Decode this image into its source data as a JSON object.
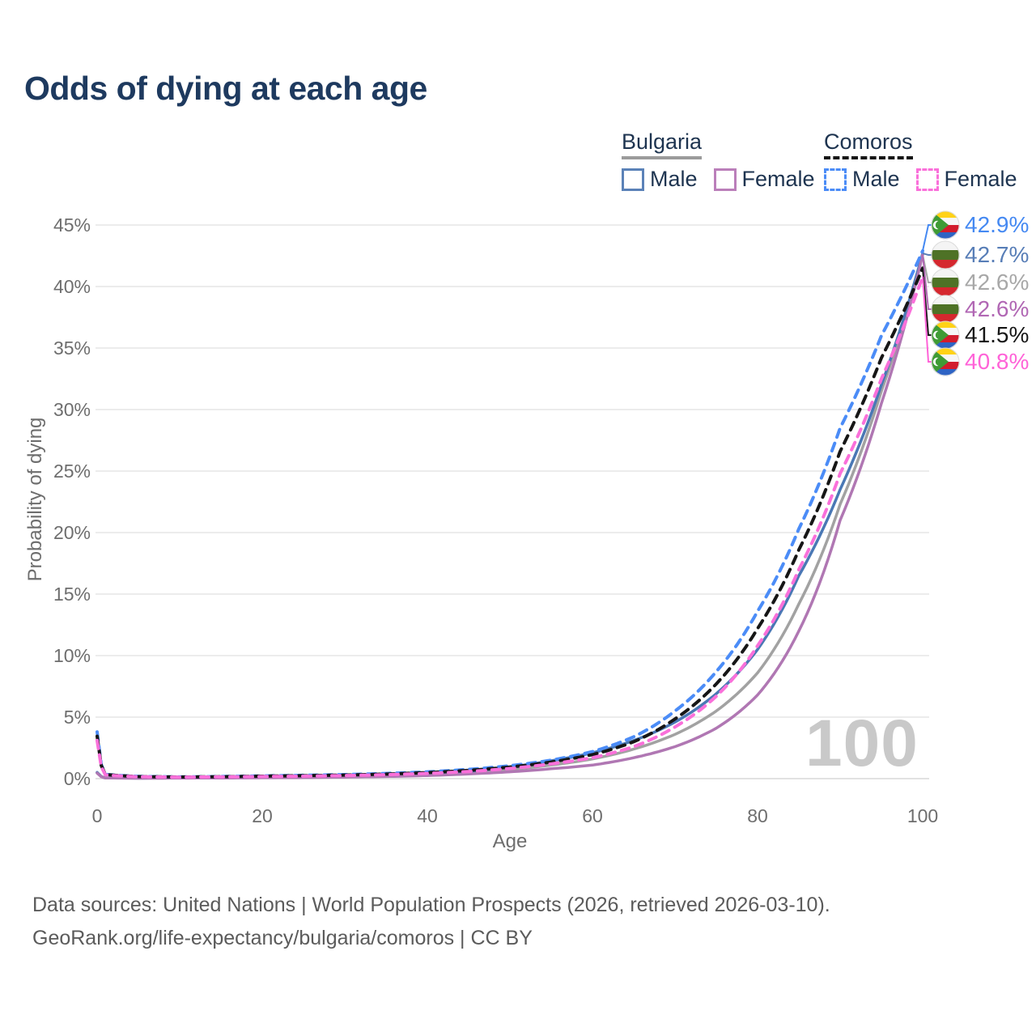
{
  "title": "Odds of dying at each age",
  "hover_age_label": "100",
  "legend": {
    "groups": [
      {
        "label": "Bulgaria",
        "line_style": "solid",
        "underline_color": "#9b9b9b",
        "items": [
          {
            "label": "Male",
            "color": "#5b82b8",
            "dash": false
          },
          {
            "label": "Female",
            "color": "#bb7fba",
            "dash": false
          }
        ]
      },
      {
        "label": "Comoros",
        "line_style": "dashed",
        "underline_color": "#161616",
        "items": [
          {
            "label": "Male",
            "color": "#4b8cf7",
            "dash": true
          },
          {
            "label": "Female",
            "color": "#fa70da",
            "dash": true
          }
        ]
      }
    ]
  },
  "end_labels": [
    {
      "value": "42.9%",
      "color": "#4589f2",
      "flag": "comoros",
      "series": "comoros_male"
    },
    {
      "value": "42.7%",
      "color": "#587eb7",
      "flag": "bulgaria",
      "series": "bulgaria_male"
    },
    {
      "value": "42.6%",
      "color": "#a8a8a8",
      "flag": "bulgaria",
      "series": "bulgaria_both"
    },
    {
      "value": "42.6%",
      "color": "#b167b4",
      "flag": "bulgaria",
      "series": "bulgaria_female"
    },
    {
      "value": "41.5%",
      "color": "#161616",
      "flag": "comoros",
      "series": "comoros_both"
    },
    {
      "value": "40.8%",
      "color": "#ff63d8",
      "flag": "comoros",
      "series": "comoros_female"
    }
  ],
  "source": {
    "line1": "Data sources: United Nations | World Population Prospects (2026, retrieved 2026-03-10).",
    "line2": "GeoRank.org/life-expectancy/bulgaria/comoros | CC BY"
  },
  "chart_data": {
    "type": "line",
    "title": "Odds of dying at each age",
    "xlabel": "Age",
    "ylabel": "Probability of dying",
    "xlim": [
      0,
      100
    ],
    "ylim": [
      0,
      45
    ],
    "grid": "horizontal-only",
    "legend_position": "top-right",
    "y_ticks": [
      0,
      5,
      10,
      15,
      20,
      25,
      30,
      35,
      40,
      45
    ],
    "y_tick_suffix": "%",
    "x_ticks": [
      0,
      20,
      40,
      60,
      80,
      100
    ],
    "x": [
      0,
      1,
      5,
      10,
      15,
      20,
      25,
      30,
      35,
      40,
      45,
      50,
      55,
      60,
      65,
      70,
      75,
      80,
      85,
      90,
      95,
      100
    ],
    "series": [
      {
        "id": "bulgaria_both",
        "name": "Bulgaria Both sexes",
        "country": "Bulgaria",
        "sex": "both",
        "color": "#a2a2a2",
        "dash": false,
        "values": [
          0.48,
          0.055,
          0.035,
          0.045,
          0.065,
          0.1,
          0.12,
          0.16,
          0.22,
          0.33,
          0.5,
          0.75,
          1.1,
          1.6,
          2.4,
          3.6,
          5.5,
          8.6,
          14.2,
          22.3,
          31.5,
          42.6
        ]
      },
      {
        "id": "bulgaria_male",
        "name": "Bulgaria Male",
        "country": "Bulgaria",
        "sex": "male",
        "color": "#4a78b5",
        "dash": false,
        "values": [
          0.5,
          0.06,
          0.04,
          0.05,
          0.08,
          0.12,
          0.15,
          0.2,
          0.28,
          0.4,
          0.6,
          0.95,
          1.45,
          2.1,
          3.1,
          4.6,
          6.9,
          10.5,
          16.5,
          23.5,
          32.0,
          42.7
        ]
      },
      {
        "id": "bulgaria_female",
        "name": "Bulgaria Female",
        "country": "Bulgaria",
        "sex": "female",
        "color": "#b077b3",
        "dash": false,
        "values": [
          0.45,
          0.05,
          0.03,
          0.04,
          0.05,
          0.07,
          0.09,
          0.12,
          0.17,
          0.25,
          0.38,
          0.55,
          0.8,
          1.1,
          1.7,
          2.6,
          4.1,
          6.8,
          12.0,
          21.0,
          30.5,
          42.6
        ]
      },
      {
        "id": "comoros_male",
        "name": "Comoros Male",
        "country": "Comoros",
        "sex": "male",
        "color": "#4b8cf7",
        "dash": true,
        "values": [
          3.8,
          0.35,
          0.18,
          0.14,
          0.17,
          0.22,
          0.27,
          0.33,
          0.42,
          0.55,
          0.75,
          1.05,
          1.5,
          2.2,
          3.4,
          5.5,
          8.7,
          13.6,
          20.3,
          28.5,
          36.0,
          42.9
        ]
      },
      {
        "id": "comoros_both",
        "name": "Comoros Both sexes",
        "country": "Comoros",
        "sex": "both",
        "color": "#161616",
        "dash": true,
        "values": [
          3.45,
          0.33,
          0.165,
          0.13,
          0.155,
          0.2,
          0.24,
          0.29,
          0.37,
          0.49,
          0.67,
          0.94,
          1.35,
          1.95,
          3.0,
          4.85,
          7.7,
          12.2,
          18.6,
          26.6,
          34.2,
          41.5
        ]
      },
      {
        "id": "comoros_female",
        "name": "Comoros Female",
        "country": "Comoros",
        "sex": "female",
        "color": "#fa70da",
        "dash": true,
        "values": [
          3.1,
          0.3,
          0.15,
          0.12,
          0.14,
          0.17,
          0.2,
          0.25,
          0.32,
          0.42,
          0.58,
          0.82,
          1.2,
          1.7,
          2.6,
          4.2,
          6.7,
          10.8,
          17.0,
          24.8,
          32.5,
          40.8
        ]
      }
    ],
    "end_values": {
      "comoros_male": 42.9,
      "bulgaria_male": 42.7,
      "bulgaria_both": 42.6,
      "bulgaria_female": 42.6,
      "comoros_both": 41.5,
      "comoros_female": 40.8
    }
  }
}
